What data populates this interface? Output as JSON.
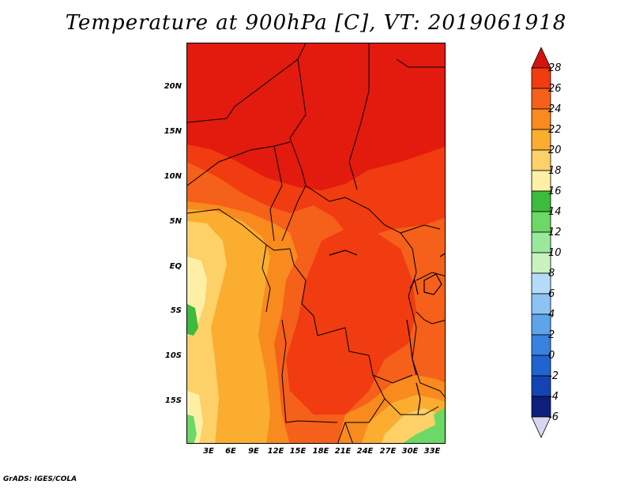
{
  "title": "Temperature at 900hPa [C], VT: 2019061918",
  "credit": "GrADS: IGES/COLA",
  "lat_labels": [
    "20N",
    "15N",
    "10N",
    "5N",
    "EQ",
    "5S",
    "10S",
    "15S"
  ],
  "lon_labels": [
    "3E",
    "6E",
    "9E",
    "12E",
    "15E",
    "18E",
    "21E",
    "24E",
    "27E",
    "30E",
    "33E"
  ],
  "colorbar": {
    "unit": "C",
    "labels": [
      "28",
      "26",
      "24",
      "22",
      "20",
      "18",
      "16",
      "14",
      "12",
      "10",
      "8",
      "6",
      "4",
      "2",
      "0",
      "-2",
      "-4",
      "-6"
    ],
    "colors": [
      "#e31a0e",
      "#f03c10",
      "#f5601a",
      "#f88a1e",
      "#fbad30",
      "#fdd068",
      "#fdf0a6",
      "#3dbb3d",
      "#6cd865",
      "#9ae89a",
      "#c8f2c0",
      "#b4dcf8",
      "#8cc3f2",
      "#5ea4ea",
      "#3882e0",
      "#1f64d0",
      "#1444b2",
      "#0c1f7a"
    ],
    "top_arrow_color": "#d7120c",
    "bottom_arrow_color": "#d8d6f0"
  },
  "chart_data": {
    "type": "heatmap",
    "title": "Temperature at 900hPa [C], VT: 2019061918",
    "variable": "Temperature at 900hPa",
    "units": "C",
    "valid_time": "2019061918",
    "x_ticks": [
      "3E",
      "6E",
      "9E",
      "12E",
      "15E",
      "18E",
      "21E",
      "24E",
      "27E",
      "30E",
      "33E"
    ],
    "y_ticks": [
      "20N",
      "15N",
      "10N",
      "5N",
      "EQ",
      "5S",
      "10S",
      "15S"
    ],
    "xlim": [
      0.5,
      34.5
    ],
    "ylim": [
      -20,
      24.5
    ],
    "levels": [
      -6,
      -4,
      -2,
      0,
      2,
      4,
      6,
      8,
      10,
      12,
      14,
      16,
      18,
      20,
      22,
      24,
      26,
      28
    ]
  }
}
